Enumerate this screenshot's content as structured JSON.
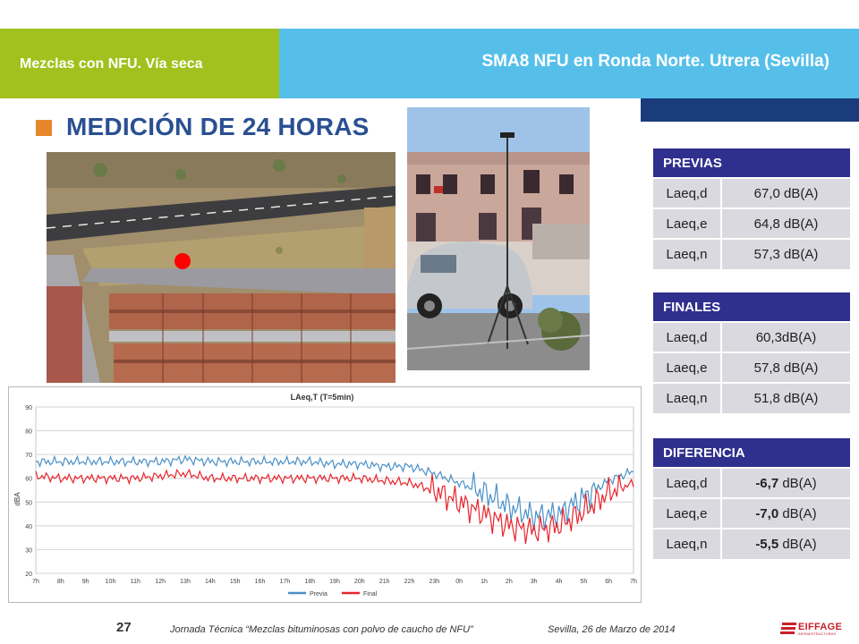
{
  "header": {
    "left_title": "Mezclas con NFU. Vía seca",
    "right_title": "SMA8 NFU en Ronda Norte. Utrera (Sevilla)"
  },
  "slide": {
    "title": "MEDICIÓN DE 24 HORAS"
  },
  "colors": {
    "green": "#a3c11e",
    "blue": "#56bfe9",
    "navy": "#2f2f8e",
    "accent": "#e8862c",
    "previa": "#4a90c8",
    "final": "#e8242c"
  },
  "tables": {
    "previas": {
      "title": "PREVIAS",
      "rows": [
        {
          "key": "Laeq,d",
          "value": "67,0 dB(A)"
        },
        {
          "key": "Laeq,e",
          "value": "64,8 dB(A)"
        },
        {
          "key": "Laeq,n",
          "value": "57,3 dB(A)"
        }
      ]
    },
    "finales": {
      "title": "FINALES",
      "rows": [
        {
          "key": "Laeq,d",
          "value": "60,3dB(A)"
        },
        {
          "key": "Laeq,e",
          "value": "57,8 dB(A)"
        },
        {
          "key": "Laeq,n",
          "value": "51,8 dB(A)"
        }
      ]
    },
    "diferencia": {
      "title": "DIFERENCIA",
      "rows": [
        {
          "key": "Laeq,d",
          "num": "-6,7",
          "unit": " dB(A)"
        },
        {
          "key": "Laeq,e",
          "num": "-7,0",
          "unit": " dB(A)"
        },
        {
          "key": "Laeq,n",
          "num": "-5,5",
          "unit": " dB(A)"
        }
      ]
    }
  },
  "chart_data": {
    "type": "line",
    "title": "LAeq,T (T=5min)",
    "ylabel": "dBA",
    "xlabel": "",
    "ylim": [
      20,
      90
    ],
    "yticks": [
      20,
      30,
      40,
      50,
      60,
      70,
      80,
      90
    ],
    "categories": [
      "7h",
      "8h",
      "9h",
      "10h",
      "11h",
      "12h",
      "13h",
      "14h",
      "15h",
      "16h",
      "17h",
      "18h",
      "19h",
      "20h",
      "21h",
      "22h",
      "23h",
      "0h",
      "1h",
      "2h",
      "3h",
      "4h",
      "5h",
      "6h",
      "7h"
    ],
    "grid": true,
    "legend_position": "bottom",
    "series": [
      {
        "name": "Previa",
        "values": [
          67,
          67,
          67,
          67,
          67,
          67,
          68,
          67,
          67,
          67,
          67,
          67,
          66,
          66,
          65,
          65,
          62,
          58,
          54,
          48,
          44,
          45,
          52,
          59,
          63
        ]
      },
      {
        "name": "Final",
        "values": [
          61,
          60,
          60,
          60,
          60,
          61,
          62,
          60,
          60,
          60,
          60,
          60,
          60,
          60,
          59,
          58,
          55,
          50,
          45,
          40,
          38,
          40,
          46,
          54,
          58
        ]
      }
    ]
  },
  "footer": {
    "page": "27",
    "note": "Jornada Técnica “Mezclas bituminosas con polvo de caucho de NFU”",
    "date": "Sevilla, 26 de Marzo de 2014",
    "logo_text": "EIFFAGE",
    "logo_sub": "INFRAESTRUCTURAS"
  }
}
